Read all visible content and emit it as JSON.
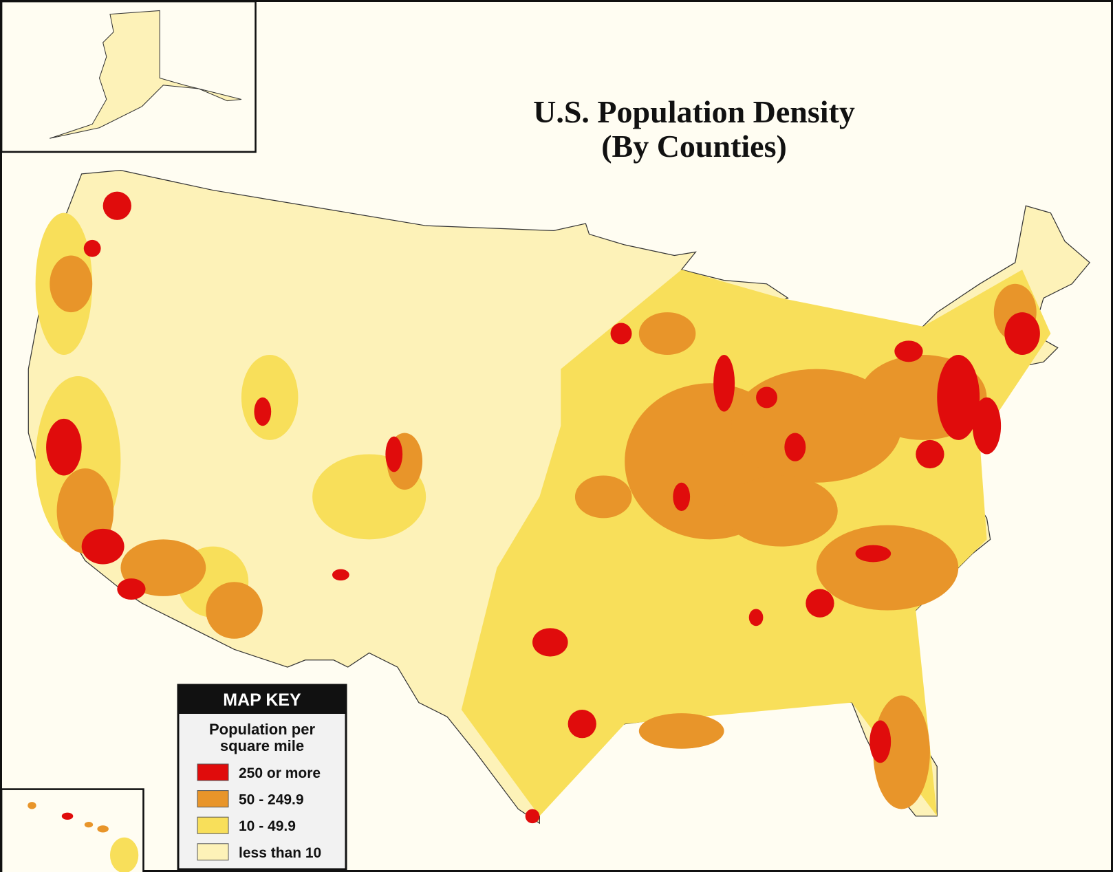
{
  "title": {
    "line1": "U.S. Population Density",
    "line2": "(By Counties)"
  },
  "legend": {
    "header": "MAP KEY",
    "subtitle1": "Population per",
    "subtitle2": "square mile",
    "items": [
      {
        "label": "250 or more",
        "color": "#e00c0c"
      },
      {
        "label": "50 - 249.9",
        "color": "#e8952a"
      },
      {
        "label": "10 - 49.9",
        "color": "#f8df5a"
      },
      {
        "label": "less than 10",
        "color": "#fdf2b8"
      }
    ]
  }
}
